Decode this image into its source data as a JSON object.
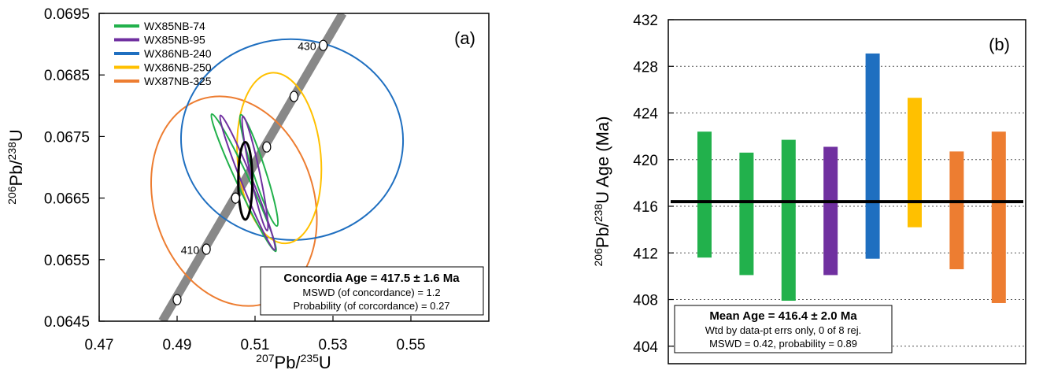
{
  "chart_data": [
    {
      "type": "scatter",
      "panel_label": "(a)",
      "xlabel_parts": [
        "207",
        "Pb/",
        "235",
        "U"
      ],
      "ylabel_parts": [
        "206",
        "Pb/",
        "238",
        "U"
      ],
      "xlim": [
        0.47,
        0.57
      ],
      "ylim": [
        0.0645,
        0.0695
      ],
      "x_ticks": [
        0.47,
        0.49,
        0.51,
        0.53,
        0.55
      ],
      "x_tick_labels": [
        "0.47",
        "0.49",
        "0.51",
        "0.53",
        "0.55"
      ],
      "y_ticks": [
        0.0645,
        0.0655,
        0.0665,
        0.0675,
        0.0685,
        0.0695
      ],
      "y_tick_labels": [
        "0.0645",
        "0.0655",
        "0.0665",
        "0.0675",
        "0.0685",
        "0.0695"
      ],
      "legend_position": "top-left",
      "series": [
        {
          "name": "WX85NB-74",
          "color": "#22b14c"
        },
        {
          "name": "WX85NB-95",
          "color": "#7030a0"
        },
        {
          "name": "WX86NB-240",
          "color": "#1f6fc0"
        },
        {
          "name": "WX86NB-250",
          "color": "#ffc000"
        },
        {
          "name": "WX87NB-325",
          "color": "#ed7d31"
        }
      ],
      "error_ellipses": [
        {
          "series": "WX87NB-325",
          "cx": 0.5046,
          "cy": 0.06645,
          "rx": 0.0205,
          "ry": 0.00174,
          "angle": 18
        },
        {
          "series": "WX86NB-240",
          "cx": 0.5195,
          "cy": 0.06745,
          "rx": 0.0285,
          "ry": 0.00163,
          "angle": -3
        },
        {
          "series": "WX86NB-250",
          "cx": 0.5162,
          "cy": 0.06715,
          "rx": 0.0107,
          "ry": 0.00139,
          "angle": 5
        },
        {
          "series": "WX85NB-74",
          "cx": 0.5071,
          "cy": 0.06675,
          "rx": 0.0016,
          "ry": 0.00123,
          "angle": 25
        },
        {
          "series": "WX85NB-74",
          "cx": 0.511,
          "cy": 0.06695,
          "rx": 0.0016,
          "ry": 0.00095,
          "angle": 18
        },
        {
          "series": "WX85NB-95",
          "cx": 0.5081,
          "cy": 0.06675,
          "rx": 0.0014,
          "ry": 0.00118,
          "angle": 22
        },
        {
          "series": "WX85NB-95",
          "cx": 0.51,
          "cy": 0.0669,
          "rx": 0.0012,
          "ry": 0.00095,
          "angle": 12
        }
      ],
      "concordia_ellipse": {
        "color": "#000000",
        "cx": 0.5075,
        "cy": 0.06678,
        "rx": 0.0018,
        "ry": 0.00063,
        "angle": 0
      },
      "concordia_band_color": "#888888",
      "concordia_ends": [
        {
          "x": 0.4862,
          "y": 0.0645
        },
        {
          "x": 0.5325,
          "y": 0.0695
        }
      ],
      "concordia_points": [
        {
          "x": 0.49,
          "y": 0.06485
        },
        {
          "x": 0.4975,
          "y": 0.06567,
          "label": "410"
        },
        {
          "x": 0.505,
          "y": 0.0665
        },
        {
          "x": 0.513,
          "y": 0.06733
        },
        {
          "x": 0.52,
          "y": 0.06815
        },
        {
          "x": 0.5275,
          "y": 0.06898,
          "label": "430"
        }
      ],
      "result_box": {
        "title": "Concordia Age = 417.5 ± 1.6 Ma",
        "line1": "MSWD (of concordance) = 1.2",
        "line2": "Probability (of corcordance) = 0.27",
        "position": "bottom-right"
      }
    },
    {
      "type": "bar",
      "subtype": "error-bar",
      "panel_label": "(b)",
      "ylabel_parts": [
        "206",
        "Pb/",
        "238",
        "U Age (Ma)"
      ],
      "ylim": [
        402.5,
        432
      ],
      "y_ticks": [
        404,
        408,
        412,
        416,
        420,
        424,
        428,
        432
      ],
      "y_tick_labels": [
        "404",
        "408",
        "412",
        "416",
        "420",
        "424",
        "428",
        "432"
      ],
      "grid": "horizontal dotted",
      "mean_line": 416.4,
      "bars": [
        {
          "low": 411.6,
          "high": 422.4,
          "color": "#22b14c"
        },
        {
          "low": 410.1,
          "high": 420.6,
          "color": "#22b14c"
        },
        {
          "low": 407.9,
          "high": 421.7,
          "color": "#22b14c"
        },
        {
          "low": 410.1,
          "high": 421.1,
          "color": "#7030a0"
        },
        {
          "low": 411.5,
          "high": 429.1,
          "color": "#1f6fc0"
        },
        {
          "low": 414.2,
          "high": 425.3,
          "color": "#ffc000"
        },
        {
          "low": 410.6,
          "high": 420.7,
          "color": "#ed7d31"
        },
        {
          "low": 407.7,
          "high": 422.4,
          "color": "#ed7d31"
        }
      ],
      "result_box": {
        "title": "Mean Age = 416.4 ± 2.0 Ma",
        "line1": "Wtd by data-pt errs only, 0 of 8 rej.",
        "line2": "MSWD = 0.42, probability = 0.89",
        "position": "bottom-left"
      }
    }
  ]
}
